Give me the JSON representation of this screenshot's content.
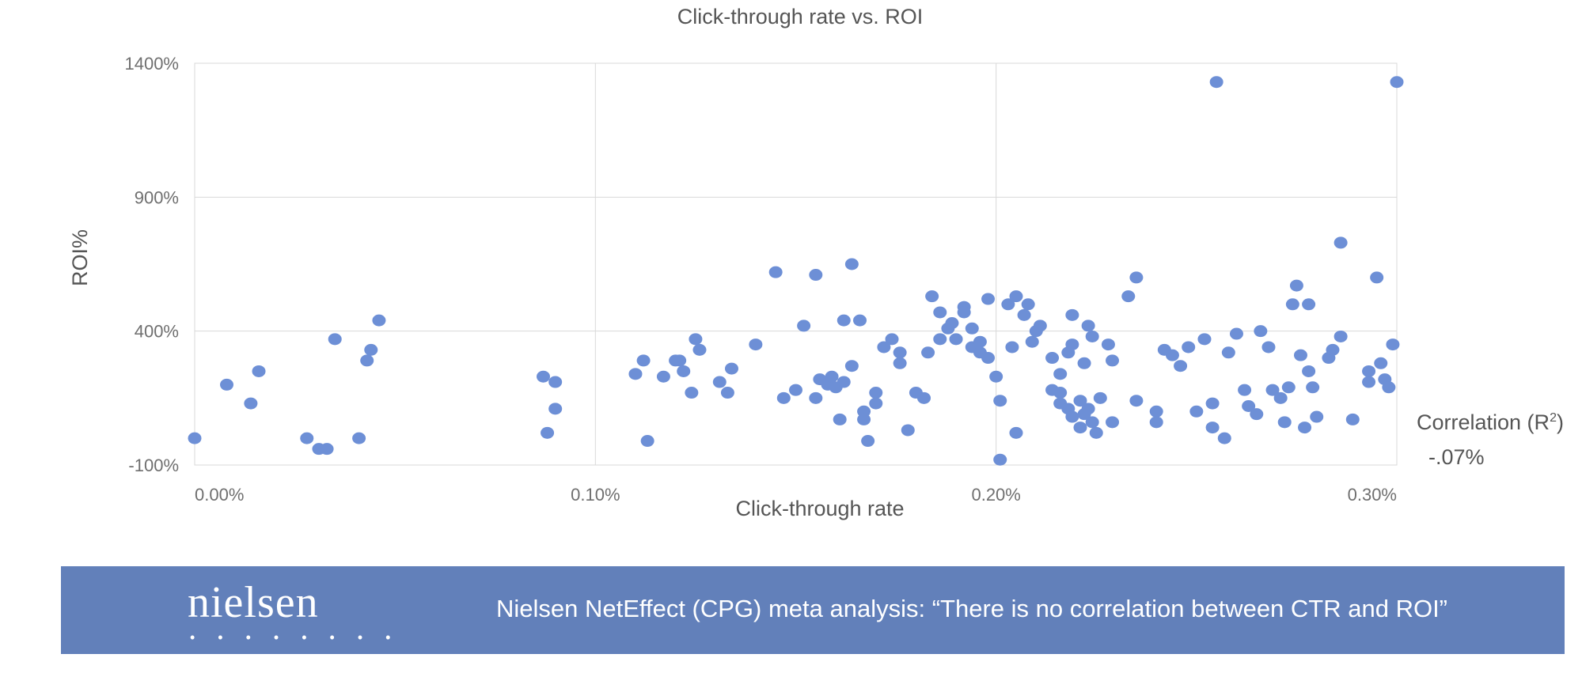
{
  "chart_data": {
    "type": "scatter",
    "title": "Click-through rate vs. ROI",
    "xlabel": "Click-through rate",
    "ylabel": "ROI%",
    "xlim": [
      0.0,
      0.003
    ],
    "ylim": [
      -100,
      1400
    ],
    "x_ticks": [
      "0.00%",
      "0.10%",
      "0.20%",
      "0.30%"
    ],
    "y_ticks": [
      "-100%",
      "400%",
      "900%",
      "1400%"
    ],
    "grid": true,
    "point_color": "#6d8fd6",
    "points": [
      {
        "x": 8e-05,
        "y": 200
      },
      {
        "x": 0.00014,
        "y": 130
      },
      {
        "x": 0.00016,
        "y": 250
      },
      {
        "x": 0.00028,
        "y": 0
      },
      {
        "x": 0.00031,
        "y": -40
      },
      {
        "x": 0.00033,
        "y": -40
      },
      {
        "x": 0.00035,
        "y": 370
      },
      {
        "x": 0.00041,
        "y": 0
      },
      {
        "x": 0.00043,
        "y": 290
      },
      {
        "x": 0.00044,
        "y": 330
      },
      {
        "x": 0.00046,
        "y": 440
      },
      {
        "x": 0.00087,
        "y": 230
      },
      {
        "x": 0.00088,
        "y": 20
      },
      {
        "x": 0.0009,
        "y": 110
      },
      {
        "x": 0.0009,
        "y": 210
      },
      {
        "x": 0.00112,
        "y": 290
      },
      {
        "x": 0.00117,
        "y": 230
      },
      {
        "x": 0.0012,
        "y": 290
      },
      {
        "x": 0.00122,
        "y": 250
      },
      {
        "x": 0.00124,
        "y": 170
      },
      {
        "x": 0.00125,
        "y": 370
      },
      {
        "x": 0.00126,
        "y": 330
      },
      {
        "x": 0.0011,
        "y": 240
      },
      {
        "x": 0.00113,
        "y": -10
      },
      {
        "x": 0.00121,
        "y": 290
      },
      {
        "x": 0.00131,
        "y": 210
      },
      {
        "x": 0.00133,
        "y": 170
      },
      {
        "x": 0.00134,
        "y": 260
      },
      {
        "x": 0.0014,
        "y": 350
      },
      {
        "x": 0.00145,
        "y": 620
      },
      {
        "x": 0.00147,
        "y": 150
      },
      {
        "x": 0.0015,
        "y": 180
      },
      {
        "x": 0.00152,
        "y": 420
      },
      {
        "x": 0.00155,
        "y": 610
      },
      {
        "x": 0.00156,
        "y": 220
      },
      {
        "x": 0.00155,
        "y": 150
      },
      {
        "x": 0.00158,
        "y": 200
      },
      {
        "x": 0.00159,
        "y": 230
      },
      {
        "x": 0.0016,
        "y": 190
      },
      {
        "x": 0.00161,
        "y": 70
      },
      {
        "x": 0.00162,
        "y": 210
      },
      {
        "x": 0.00162,
        "y": 440
      },
      {
        "x": 0.00164,
        "y": 270
      },
      {
        "x": 0.00164,
        "y": 650
      },
      {
        "x": 0.00166,
        "y": 440
      },
      {
        "x": 0.00167,
        "y": 100
      },
      {
        "x": 0.00167,
        "y": 70
      },
      {
        "x": 0.00168,
        "y": -10
      },
      {
        "x": 0.0017,
        "y": 170
      },
      {
        "x": 0.0017,
        "y": 130
      },
      {
        "x": 0.00172,
        "y": 340
      },
      {
        "x": 0.00174,
        "y": 370
      },
      {
        "x": 0.00176,
        "y": 320
      },
      {
        "x": 0.00176,
        "y": 280
      },
      {
        "x": 0.00178,
        "y": 30
      },
      {
        "x": 0.0018,
        "y": 170
      },
      {
        "x": 0.00182,
        "y": 150
      },
      {
        "x": 0.00183,
        "y": 320
      },
      {
        "x": 0.00184,
        "y": 530
      },
      {
        "x": 0.00186,
        "y": 470
      },
      {
        "x": 0.00186,
        "y": 370
      },
      {
        "x": 0.00188,
        "y": 410
      },
      {
        "x": 0.00189,
        "y": 430
      },
      {
        "x": 0.0019,
        "y": 370
      },
      {
        "x": 0.00192,
        "y": 490
      },
      {
        "x": 0.00194,
        "y": 340
      },
      {
        "x": 0.00192,
        "y": 470
      },
      {
        "x": 0.00194,
        "y": 410
      },
      {
        "x": 0.00196,
        "y": 320
      },
      {
        "x": 0.00196,
        "y": 360
      },
      {
        "x": 0.00198,
        "y": 300
      },
      {
        "x": 0.00198,
        "y": 520
      },
      {
        "x": 0.002,
        "y": 230
      },
      {
        "x": 0.00201,
        "y": 140
      },
      {
        "x": 0.00201,
        "y": -80
      },
      {
        "x": 0.00203,
        "y": 500
      },
      {
        "x": 0.00204,
        "y": 340
      },
      {
        "x": 0.00205,
        "y": 530
      },
      {
        "x": 0.00205,
        "y": 20
      },
      {
        "x": 0.00207,
        "y": 460
      },
      {
        "x": 0.00208,
        "y": 500
      },
      {
        "x": 0.00209,
        "y": 360
      },
      {
        "x": 0.0021,
        "y": 400
      },
      {
        "x": 0.00211,
        "y": 420
      },
      {
        "x": 0.00214,
        "y": 300
      },
      {
        "x": 0.00214,
        "y": 180
      },
      {
        "x": 0.00216,
        "y": 170
      },
      {
        "x": 0.00216,
        "y": 240
      },
      {
        "x": 0.00218,
        "y": 320
      },
      {
        "x": 0.00219,
        "y": 350
      },
      {
        "x": 0.00219,
        "y": 460
      },
      {
        "x": 0.00222,
        "y": 280
      },
      {
        "x": 0.00223,
        "y": 420
      },
      {
        "x": 0.00224,
        "y": 380
      },
      {
        "x": 0.00216,
        "y": 130
      },
      {
        "x": 0.00218,
        "y": 110
      },
      {
        "x": 0.00219,
        "y": 80
      },
      {
        "x": 0.00221,
        "y": 140
      },
      {
        "x": 0.00221,
        "y": 40
      },
      {
        "x": 0.00222,
        "y": 90
      },
      {
        "x": 0.00223,
        "y": 110
      },
      {
        "x": 0.00224,
        "y": 60
      },
      {
        "x": 0.00225,
        "y": 20
      },
      {
        "x": 0.00226,
        "y": 150
      },
      {
        "x": 0.00228,
        "y": 350
      },
      {
        "x": 0.00229,
        "y": 290
      },
      {
        "x": 0.00229,
        "y": 60
      },
      {
        "x": 0.00233,
        "y": 530
      },
      {
        "x": 0.00235,
        "y": 600
      },
      {
        "x": 0.00235,
        "y": 140
      },
      {
        "x": 0.0024,
        "y": 100
      },
      {
        "x": 0.0024,
        "y": 60
      },
      {
        "x": 0.00242,
        "y": 330
      },
      {
        "x": 0.00244,
        "y": 310
      },
      {
        "x": 0.00246,
        "y": 270
      },
      {
        "x": 0.00248,
        "y": 340
      },
      {
        "x": 0.0025,
        "y": 100
      },
      {
        "x": 0.00252,
        "y": 370
      },
      {
        "x": 0.00254,
        "y": 130
      },
      {
        "x": 0.00254,
        "y": 40
      },
      {
        "x": 0.00255,
        "y": 1330
      },
      {
        "x": 0.00257,
        "y": 0
      },
      {
        "x": 0.00258,
        "y": 320
      },
      {
        "x": 0.0026,
        "y": 390
      },
      {
        "x": 0.00262,
        "y": 180
      },
      {
        "x": 0.00263,
        "y": 120
      },
      {
        "x": 0.00265,
        "y": 90
      },
      {
        "x": 0.00266,
        "y": 400
      },
      {
        "x": 0.00268,
        "y": 340
      },
      {
        "x": 0.00269,
        "y": 180
      },
      {
        "x": 0.00271,
        "y": 150
      },
      {
        "x": 0.00272,
        "y": 60
      },
      {
        "x": 0.00273,
        "y": 190
      },
      {
        "x": 0.00274,
        "y": 500
      },
      {
        "x": 0.00275,
        "y": 570
      },
      {
        "x": 0.00276,
        "y": 310
      },
      {
        "x": 0.00277,
        "y": 40
      },
      {
        "x": 0.00278,
        "y": 500
      },
      {
        "x": 0.00278,
        "y": 250
      },
      {
        "x": 0.00279,
        "y": 190
      },
      {
        "x": 0.0028,
        "y": 80
      },
      {
        "x": 0.00283,
        "y": 300
      },
      {
        "x": 0.00284,
        "y": 330
      },
      {
        "x": 0.00286,
        "y": 730
      },
      {
        "x": 0.00286,
        "y": 380
      },
      {
        "x": 0.00289,
        "y": 70
      },
      {
        "x": 0.00293,
        "y": 210
      },
      {
        "x": 0.00293,
        "y": 250
      },
      {
        "x": 0.00295,
        "y": 600
      },
      {
        "x": 0.00296,
        "y": 280
      },
      {
        "x": 0.00297,
        "y": 220
      },
      {
        "x": 0.00298,
        "y": 190
      },
      {
        "x": 0.00299,
        "y": 350
      },
      {
        "x": 0.003,
        "y": 1330
      },
      {
        "x": 0.0,
        "y": 0
      }
    ]
  },
  "correlation": {
    "label": "Correlation (R",
    "superscript": "2",
    "label_close": ")",
    "value": "-.07%"
  },
  "banner": {
    "logo": "nielsen",
    "logo_dots": "• • • • • • • •",
    "text": "Nielsen NetEffect (CPG) meta analysis: “There is no correlation between CTR and ROI”"
  }
}
